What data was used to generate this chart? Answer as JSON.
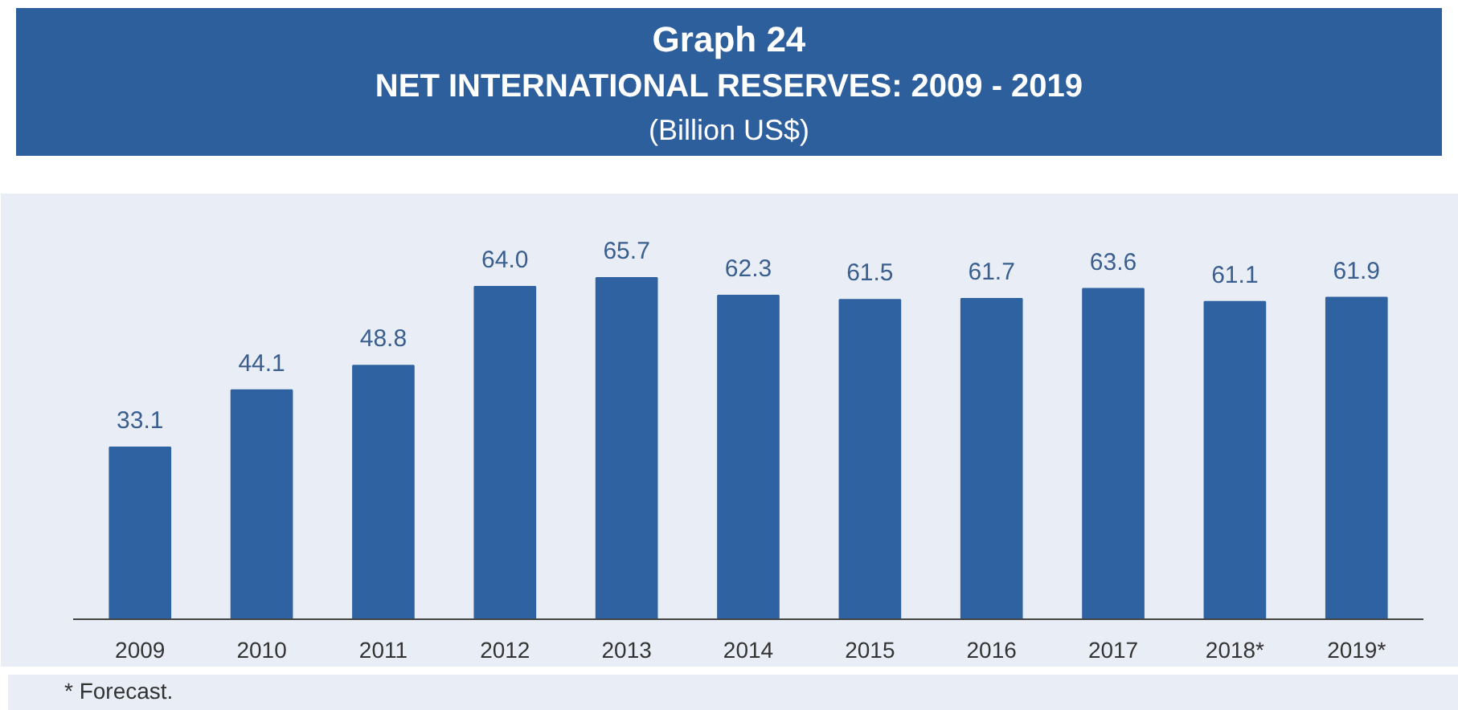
{
  "chart_data": {
    "type": "bar",
    "title": "Graph 24\nNET INTERNATIONAL RESERVES: 2009 - 2019",
    "subtitle": "(Billion US$)",
    "categories": [
      "2009",
      "2010",
      "2011",
      "2012",
      "2013",
      "2014",
      "2015",
      "2016",
      "2017",
      "2018*",
      "2019*"
    ],
    "values": [
      33.1,
      44.1,
      48.8,
      64.0,
      65.7,
      62.3,
      61.5,
      61.7,
      63.6,
      61.1,
      61.9
    ],
    "value_labels": [
      "33.1",
      "44.1",
      "48.8",
      "64.0",
      "65.7",
      "62.3",
      "61.5",
      "61.7",
      "63.6",
      "61.1",
      "61.9"
    ],
    "color": "#2f62a0",
    "grid": false,
    "annotations": [
      "* Forecast."
    ]
  }
}
